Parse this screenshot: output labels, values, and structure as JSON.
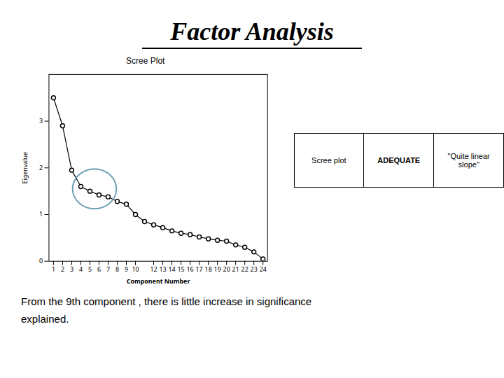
{
  "chart_data": {
    "type": "line",
    "title": "Factor Analysis",
    "subtitle": "Scree Plot",
    "xlabel": "Component Number",
    "ylabel": "Eigenvalue",
    "x": [
      1,
      2,
      3,
      4,
      5,
      6,
      7,
      8,
      9,
      10,
      11,
      12,
      13,
      14,
      15,
      16,
      17,
      18,
      19,
      20,
      21,
      22,
      23,
      24
    ],
    "values": [
      3.5,
      2.9,
      1.95,
      1.6,
      1.5,
      1.42,
      1.38,
      1.28,
      1.22,
      1.0,
      0.85,
      0.78,
      0.72,
      0.65,
      0.6,
      0.57,
      0.52,
      0.48,
      0.45,
      0.43,
      0.35,
      0.3,
      0.2,
      0.05
    ],
    "xlim": [
      0.5,
      24.5
    ],
    "ylim": [
      0,
      4
    ],
    "xticks": [
      1,
      2,
      3,
      4,
      5,
      6,
      7,
      8,
      9,
      10,
      12,
      13,
      14,
      15,
      16,
      17,
      18,
      19,
      20,
      21,
      22,
      23,
      24
    ],
    "yticks": [
      0,
      1,
      2,
      3
    ],
    "color": "#000000",
    "marker": "o",
    "grid": false,
    "ellipse": {
      "cx": 5.5,
      "cy": 1.55,
      "width": 4.8,
      "height": 0.85,
      "color": "#6a9fb0"
    },
    "table": [
      "Scree plot",
      "ADEQUATE",
      "\"Quite linear\nslope\""
    ],
    "annotations": [
      "From the 9th component , there is little increase in significance",
      "explained."
    ]
  }
}
